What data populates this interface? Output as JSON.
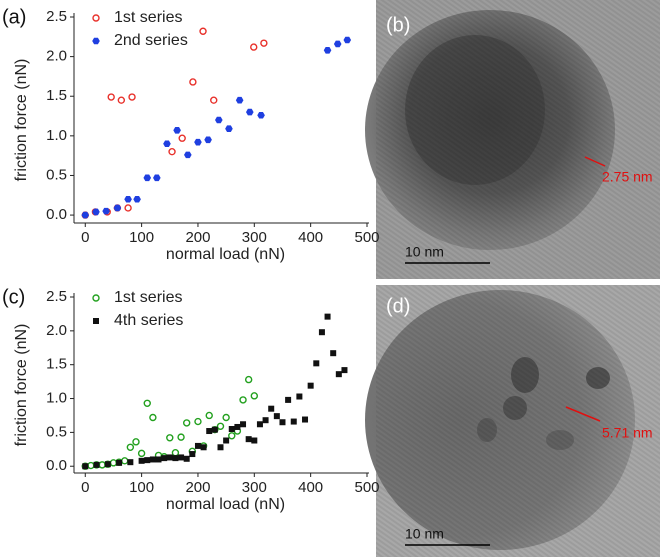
{
  "chart_data": [
    {
      "type": "scatter",
      "panel_label": "(a)",
      "xlabel": "normal load (nN)",
      "ylabel": "friction force (nN)",
      "xlim": [
        -20,
        500
      ],
      "xticks": [
        0,
        100,
        200,
        300,
        400,
        500
      ],
      "ylim": [
        -0.1,
        2.5
      ],
      "yticks": [
        {
          "value": 0,
          "label": "0.0"
        },
        0.5,
        {
          "value": 1,
          "label": "1.0"
        },
        1.5,
        {
          "value": 2,
          "label": "2.0"
        },
        2.5
      ],
      "legend": "upper left",
      "series": [
        {
          "name": "1st series",
          "color": "#e8302a",
          "marker": "open-circle",
          "x": [
            0,
            18,
            39,
            57,
            76,
            46,
            64,
            83,
            154,
            172,
            191,
            209,
            228,
            299,
            317
          ],
          "values": [
            0.0,
            0.04,
            0.04,
            0.09,
            0.09,
            1.49,
            1.45,
            1.49,
            0.8,
            0.97,
            1.68,
            2.32,
            1.45,
            2.12,
            2.17
          ]
        },
        {
          "name": "2nd series",
          "color": "#1f3fe0",
          "marker": "filled-hexagon",
          "x": [
            0,
            19,
            37,
            57,
            76,
            92,
            110,
            127,
            145,
            163,
            182,
            200,
            218,
            237,
            255,
            274,
            292,
            312,
            430,
            448,
            465
          ],
          "values": [
            0.0,
            0.04,
            0.05,
            0.09,
            0.2,
            0.2,
            0.47,
            0.47,
            0.9,
            1.07,
            0.76,
            0.92,
            0.95,
            1.2,
            1.09,
            1.45,
            1.3,
            1.26,
            2.08,
            2.16,
            2.21
          ]
        }
      ]
    },
    {
      "type": "scatter",
      "panel_label": "(c)",
      "xlabel": "normal load (nN)",
      "ylabel": "friction force (nN)",
      "xlim": [
        -20,
        500
      ],
      "xticks": [
        0,
        100,
        200,
        300,
        400,
        500
      ],
      "ylim": [
        -0.1,
        2.5
      ],
      "yticks": [
        {
          "value": 0,
          "label": "0.0"
        },
        0.5,
        {
          "value": 1,
          "label": "1.0"
        },
        1.5,
        {
          "value": 2,
          "label": "2.0"
        },
        2.5
      ],
      "legend": "upper left",
      "series": [
        {
          "name": "1st series",
          "color": "#22a01e",
          "marker": "open-circle",
          "x": [
            0,
            10,
            20,
            30,
            40,
            50,
            60,
            70,
            80,
            90,
            100,
            110,
            120,
            130,
            140,
            150,
            160,
            170,
            180,
            190,
            200,
            210,
            220,
            230,
            240,
            250,
            260,
            270,
            280,
            290,
            300
          ],
          "values": [
            0.0,
            0.01,
            0.02,
            0.02,
            0.03,
            0.05,
            0.06,
            0.08,
            0.28,
            0.36,
            0.19,
            0.93,
            0.72,
            0.16,
            0.14,
            0.42,
            0.2,
            0.43,
            0.64,
            0.22,
            0.66,
            0.3,
            0.75,
            0.54,
            0.59,
            0.72,
            0.45,
            0.52,
            0.98,
            1.28,
            1.04
          ]
        },
        {
          "name": "4th series",
          "color": "#111111",
          "marker": "filled-square",
          "x": [
            0,
            20,
            40,
            60,
            80,
            100,
            110,
            120,
            130,
            140,
            150,
            160,
            170,
            180,
            190,
            200,
            210,
            220,
            230,
            240,
            250,
            260,
            270,
            280,
            290,
            300,
            310,
            320,
            330,
            340,
            350,
            360,
            370,
            380,
            390,
            400,
            410,
            420,
            430,
            440,
            450,
            460
          ],
          "values": [
            0.0,
            0.02,
            0.03,
            0.05,
            0.06,
            0.08,
            0.09,
            0.1,
            0.1,
            0.12,
            0.13,
            0.12,
            0.13,
            0.11,
            0.18,
            0.3,
            0.28,
            0.52,
            0.54,
            0.28,
            0.38,
            0.55,
            0.58,
            0.62,
            0.4,
            0.38,
            0.62,
            0.68,
            0.85,
            0.74,
            0.65,
            0.98,
            0.66,
            1.03,
            0.69,
            1.19,
            1.52,
            1.98,
            2.21,
            1.67,
            1.36,
            1.42
          ]
        }
      ]
    }
  ],
  "images": [
    {
      "label": "(b)",
      "annotation": "2.75 nm",
      "scale_bar": "10 nm"
    },
    {
      "label": "(d)",
      "annotation": "5.71 nm",
      "scale_bar": "10 nm"
    }
  ]
}
